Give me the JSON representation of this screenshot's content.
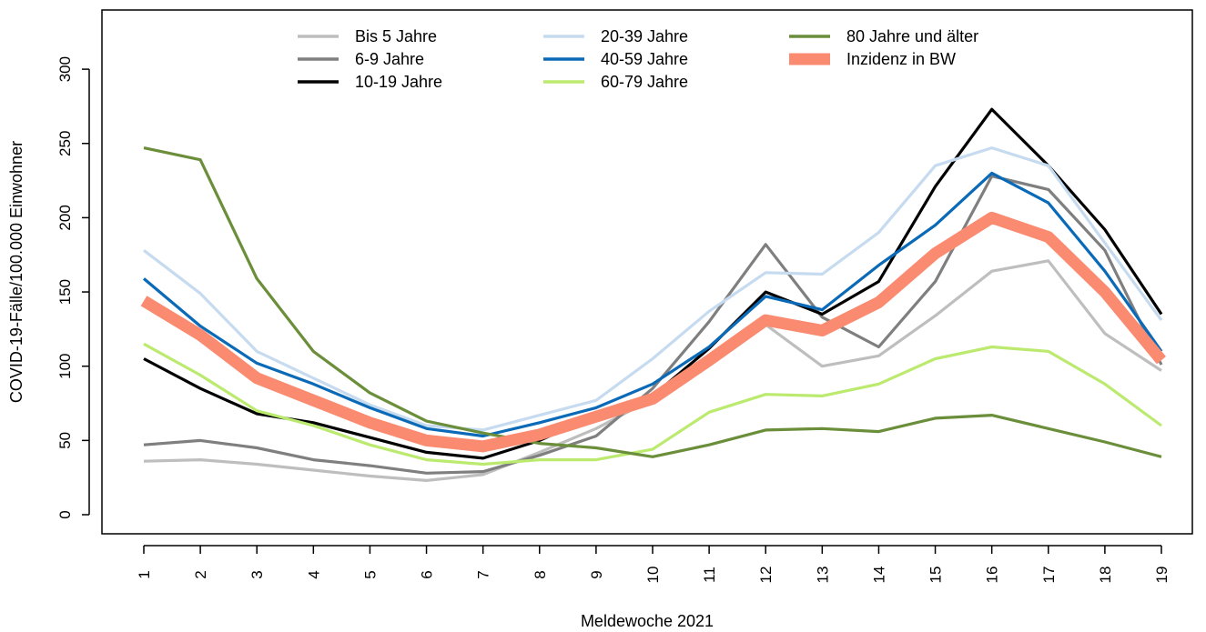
{
  "chart_data": {
    "type": "line",
    "title": "",
    "xlabel": "Meldewoche 2021",
    "ylabel": "COVID-19-Fälle/100.000 Einwohner",
    "x": [
      1,
      2,
      3,
      4,
      5,
      6,
      7,
      8,
      9,
      10,
      11,
      12,
      13,
      14,
      15,
      16,
      17,
      18,
      19
    ],
    "xlim": [
      1,
      19
    ],
    "ylim": [
      0,
      320
    ],
    "yticks": [
      0,
      50,
      100,
      150,
      200,
      250,
      300
    ],
    "grid": false,
    "legend_position": "top",
    "series": [
      {
        "name": "Bis 5 Jahre",
        "color": "#bebebe",
        "values": [
          36,
          37,
          34,
          30,
          26,
          23,
          27,
          42,
          58,
          78,
          103,
          128,
          100,
          107,
          134,
          164,
          171,
          122,
          97
        ]
      },
      {
        "name": "6-9 Jahre",
        "color": "#7f7f7f",
        "values": [
          47,
          50,
          45,
          37,
          33,
          28,
          29,
          40,
          53,
          85,
          130,
          182,
          133,
          113,
          157,
          228,
          219,
          178,
          101
        ]
      },
      {
        "name": "10-19 Jahre",
        "color": "#000000",
        "values": [
          105,
          85,
          68,
          62,
          52,
          42,
          38,
          50,
          67,
          80,
          112,
          150,
          135,
          157,
          221,
          273,
          235,
          192,
          135
        ]
      },
      {
        "name": "20-39 Jahre",
        "color": "#c6dbef",
        "values": [
          178,
          149,
          110,
          92,
          74,
          60,
          57,
          67,
          77,
          105,
          137,
          163,
          162,
          190,
          235,
          247,
          235,
          183,
          131
        ]
      },
      {
        "name": "40-59 Jahre",
        "color": "#0a6ab7",
        "values": [
          159,
          127,
          102,
          88,
          72,
          58,
          53,
          62,
          72,
          88,
          113,
          147,
          138,
          168,
          195,
          230,
          210,
          164,
          110
        ]
      },
      {
        "name": "60-79 Jahre",
        "color": "#bbea6f",
        "values": [
          115,
          94,
          70,
          60,
          47,
          37,
          34,
          37,
          37,
          44,
          69,
          81,
          80,
          88,
          105,
          113,
          110,
          88,
          60
        ]
      },
      {
        "name": "80 Jahre und älter",
        "color": "#6b8e3a",
        "values": [
          247,
          239,
          159,
          110,
          82,
          63,
          55,
          48,
          45,
          39,
          47,
          57,
          58,
          56,
          65,
          67,
          58,
          49,
          39
        ]
      },
      {
        "name": "Inzidenz in BW",
        "color": "#fa8b70",
        "values": [
          144,
          121,
          92,
          77,
          62,
          50,
          46,
          54,
          66,
          78,
          104,
          131,
          124,
          143,
          176,
          200,
          187,
          150,
          104
        ]
      }
    ],
    "legend_columns": [
      [
        "Bis 5 Jahre",
        "6-9 Jahre",
        "10-19 Jahre"
      ],
      [
        "20-39 Jahre",
        "40-59 Jahre",
        "60-79 Jahre"
      ],
      [
        "80 Jahre und älter",
        "Inzidenz in BW"
      ]
    ]
  }
}
